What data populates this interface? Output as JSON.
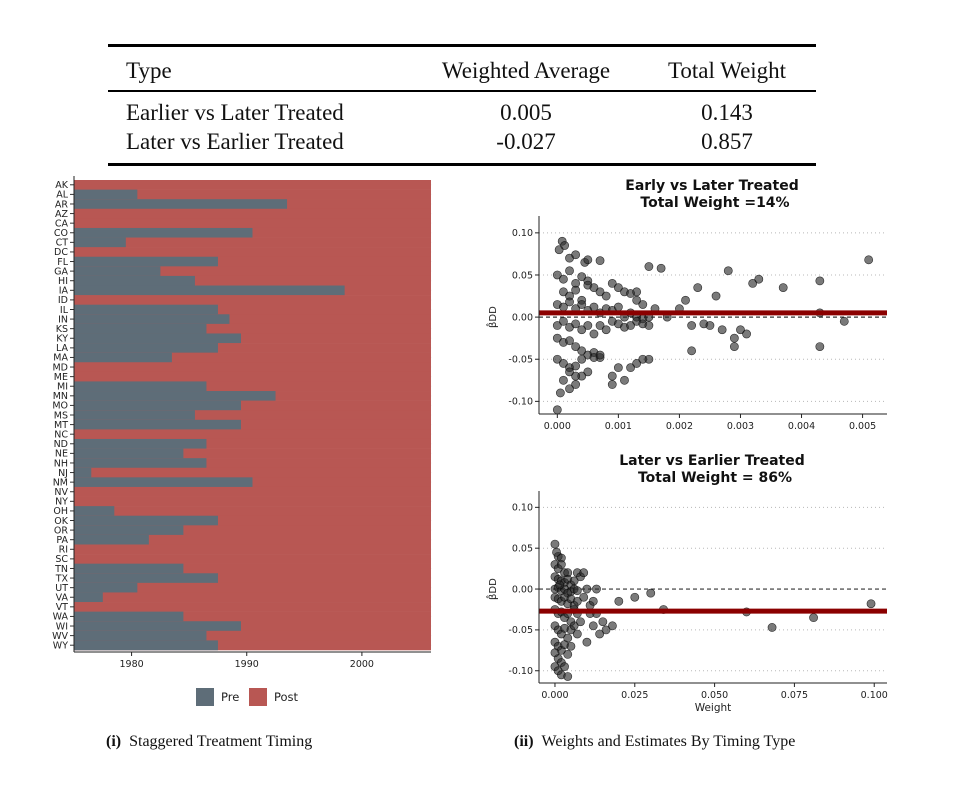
{
  "table": {
    "headers": [
      "Type",
      "Weighted Average",
      "Total Weight"
    ],
    "rows": [
      [
        "Earlier vs Later Treated",
        "0.005",
        "0.143"
      ],
      [
        "Later vs Earlier Treated",
        "-0.027",
        "0.857"
      ]
    ]
  },
  "captions": {
    "left_num": "(i)",
    "left_text": "Staggered Treatment Timing",
    "right_num": "(ii)",
    "right_text": "Weights and Estimates By Timing Type"
  },
  "chart_data": [
    {
      "type": "bar",
      "orientation": "horizontal-stacked",
      "xlim": [
        1975,
        2006
      ],
      "x_ticks": [
        1980,
        1990,
        2000
      ],
      "legend": [
        {
          "name": "Pre",
          "color": "#5e6d78"
        },
        {
          "name": "Post",
          "color": "#b85753"
        }
      ],
      "legend_position": "bottom",
      "categories": [
        "AK",
        "AL",
        "AR",
        "AZ",
        "CA",
        "CO",
        "CT",
        "DC",
        "FL",
        "GA",
        "HI",
        "IA",
        "ID",
        "IL",
        "IN",
        "KS",
        "KY",
        "LA",
        "MA",
        "MD",
        "ME",
        "MI",
        "MN",
        "MO",
        "MS",
        "MT",
        "NC",
        "ND",
        "NE",
        "NH",
        "NJ",
        "NM",
        "NV",
        "NY",
        "OH",
        "OK",
        "OR",
        "PA",
        "RI",
        "SC",
        "TN",
        "TX",
        "UT",
        "VA",
        "VT",
        "WA",
        "WI",
        "WV",
        "WY"
      ],
      "treatment_year": [
        1975,
        1980.5,
        1993.5,
        1975,
        1975,
        1990.5,
        1979.5,
        1975,
        1987.5,
        1982.5,
        1985.5,
        1998.5,
        1975,
        1987.5,
        1988.5,
        1986.5,
        1989.5,
        1987.5,
        1983.5,
        1975,
        1975,
        1986.5,
        1992.5,
        1989.5,
        1985.5,
        1989.5,
        1975,
        1986.5,
        1984.5,
        1986.5,
        1976.5,
        1990.5,
        1975,
        1975,
        1978.5,
        1987.5,
        1984.5,
        1981.5,
        1975,
        1975,
        1984.5,
        1987.5,
        1980.5,
        1977.5,
        1975,
        1984.5,
        1989.5,
        1986.5,
        1987.5
      ]
    },
    {
      "type": "scatter",
      "title": "Early vs Later Treated",
      "subtitle": "Total Weight =14%",
      "ylabel": "β̂DD",
      "xlim": [
        -0.0003,
        0.0054
      ],
      "ylim": [
        -0.115,
        0.12
      ],
      "x_ticks": [
        0.0,
        0.001,
        0.002,
        0.003,
        0.004,
        0.005
      ],
      "x_tick_labels": [
        "0.000",
        "0.001",
        "0.002",
        "0.003",
        "0.004",
        "0.005"
      ],
      "y_ticks": [
        -0.1,
        -0.05,
        0.0,
        0.05,
        0.1
      ],
      "y_tick_labels": [
        "-0.10",
        "-0.05",
        "0.00",
        "0.05",
        "0.10"
      ],
      "weighted_average": 0.005,
      "zero_line": 0,
      "points": [
        [
          3e-05,
          0.08
        ],
        [
          8e-05,
          0.09
        ],
        [
          0.00012,
          0.085
        ],
        [
          0.0002,
          0.07
        ],
        [
          0.0003,
          0.074
        ],
        [
          0.00045,
          0.065
        ],
        [
          0.0005,
          0.068
        ],
        [
          0.0007,
          0.067
        ],
        [
          0.0,
          0.05
        ],
        [
          0.0001,
          0.045
        ],
        [
          0.0002,
          0.055
        ],
        [
          0.0003,
          0.04
        ],
        [
          0.0004,
          0.048
        ],
        [
          0.0005,
          0.043
        ],
        [
          0.0001,
          0.03
        ],
        [
          0.0002,
          0.025
        ],
        [
          0.0003,
          0.032
        ],
        [
          0.0004,
          0.02
        ],
        [
          0.0005,
          0.038
        ],
        [
          0.0006,
          0.035
        ],
        [
          0.0007,
          0.03
        ],
        [
          0.0008,
          0.025
        ],
        [
          0.0009,
          0.04
        ],
        [
          0.001,
          0.035
        ],
        [
          0.0011,
          0.03
        ],
        [
          0.0012,
          0.028
        ],
        [
          0.0013,
          0.02
        ],
        [
          0.0014,
          0.015
        ],
        [
          0.0015,
          0.06
        ],
        [
          0.0017,
          0.058
        ],
        [
          0.0013,
          0.03
        ],
        [
          0.0016,
          0.01
        ],
        [
          0.0,
          0.015
        ],
        [
          0.0001,
          0.012
        ],
        [
          0.0002,
          0.018
        ],
        [
          0.0003,
          0.01
        ],
        [
          0.0004,
          0.015
        ],
        [
          0.0005,
          0.008
        ],
        [
          0.0006,
          0.012
        ],
        [
          0.0007,
          0.005
        ],
        [
          0.0008,
          0.01
        ],
        [
          0.0009,
          0.008
        ],
        [
          0.001,
          0.012
        ],
        [
          0.0011,
          0.0
        ],
        [
          0.0012,
          0.005
        ],
        [
          0.0013,
          0.0
        ],
        [
          0.0014,
          -0.002
        ],
        [
          0.0015,
          0.0
        ],
        [
          0.0,
          -0.01
        ],
        [
          0.0001,
          -0.005
        ],
        [
          0.0002,
          -0.012
        ],
        [
          0.0003,
          -0.008
        ],
        [
          0.0004,
          -0.015
        ],
        [
          0.0005,
          -0.01
        ],
        [
          0.0006,
          -0.02
        ],
        [
          0.0007,
          -0.01
        ],
        [
          0.0008,
          -0.015
        ],
        [
          0.0009,
          -0.005
        ],
        [
          0.001,
          -0.008
        ],
        [
          0.0011,
          -0.012
        ],
        [
          0.0012,
          -0.01
        ],
        [
          0.0013,
          -0.005
        ],
        [
          0.0014,
          -0.008
        ],
        [
          0.0015,
          -0.01
        ],
        [
          0.0,
          -0.025
        ],
        [
          0.0001,
          -0.03
        ],
        [
          0.0002,
          -0.028
        ],
        [
          0.0003,
          -0.035
        ],
        [
          0.0004,
          -0.04
        ],
        [
          0.0005,
          -0.045
        ],
        [
          0.0006,
          -0.042
        ],
        [
          0.0007,
          -0.048
        ],
        [
          0.0,
          -0.05
        ],
        [
          0.0001,
          -0.055
        ],
        [
          0.0002,
          -0.06
        ],
        [
          0.0003,
          -0.058
        ],
        [
          0.0004,
          -0.05
        ],
        [
          0.0005,
          -0.065
        ],
        [
          0.0006,
          -0.048
        ],
        [
          0.0007,
          -0.045
        ],
        [
          0.0001,
          -0.075
        ],
        [
          0.0002,
          -0.085
        ],
        [
          0.0003,
          -0.08
        ],
        [
          5e-05,
          -0.09
        ],
        [
          0.0,
          -0.11
        ],
        [
          0.0004,
          -0.07
        ],
        [
          0.0003,
          -0.07
        ],
        [
          0.0002,
          -0.065
        ],
        [
          0.0009,
          -0.07
        ],
        [
          0.001,
          -0.06
        ],
        [
          0.0009,
          -0.08
        ],
        [
          0.0011,
          -0.075
        ],
        [
          0.0012,
          -0.06
        ],
        [
          0.0013,
          -0.055
        ],
        [
          0.0014,
          -0.05
        ],
        [
          0.0015,
          -0.05
        ],
        [
          0.0018,
          0.0
        ],
        [
          0.002,
          0.01
        ],
        [
          0.0021,
          0.02
        ],
        [
          0.0022,
          -0.01
        ],
        [
          0.0022,
          -0.04
        ],
        [
          0.0023,
          0.035
        ],
        [
          0.0024,
          -0.008
        ],
        [
          0.0025,
          -0.01
        ],
        [
          0.0026,
          0.025
        ],
        [
          0.0027,
          -0.015
        ],
        [
          0.0028,
          0.055
        ],
        [
          0.0029,
          -0.025
        ],
        [
          0.0029,
          -0.035
        ],
        [
          0.003,
          -0.015
        ],
        [
          0.0031,
          -0.02
        ],
        [
          0.0032,
          0.04
        ],
        [
          0.0033,
          0.045
        ],
        [
          0.0037,
          0.035
        ],
        [
          0.0043,
          -0.035
        ],
        [
          0.0043,
          0.043
        ],
        [
          0.0043,
          0.005
        ],
        [
          0.0047,
          -0.005
        ],
        [
          0.0051,
          0.068
        ]
      ]
    },
    {
      "type": "scatter",
      "title": "Later vs Earlier Treated",
      "subtitle": "Total Weight = 86%",
      "xlabel": "Weight",
      "ylabel": "β̂DD",
      "xlim": [
        -0.005,
        0.104
      ],
      "ylim": [
        -0.115,
        0.12
      ],
      "x_ticks": [
        0.0,
        0.025,
        0.05,
        0.075,
        0.1
      ],
      "x_tick_labels": [
        "0.000",
        "0.025",
        "0.050",
        "0.075",
        "0.100"
      ],
      "y_ticks": [
        -0.1,
        -0.05,
        0.0,
        0.05,
        0.1
      ],
      "y_tick_labels": [
        "-0.10",
        "-0.05",
        "0.00",
        "0.05",
        "0.10"
      ],
      "weighted_average": -0.027,
      "zero_line": 0,
      "points": [
        [
          0.0,
          0.055
        ],
        [
          0.001,
          0.04
        ],
        [
          0.002,
          0.038
        ],
        [
          0.0,
          0.03
        ],
        [
          0.001,
          0.025
        ],
        [
          0.002,
          0.03
        ],
        [
          0.003,
          0.02
        ],
        [
          0.004,
          0.02
        ],
        [
          0.0,
          0.015
        ],
        [
          0.001,
          0.012
        ],
        [
          0.002,
          0.01
        ],
        [
          0.003,
          0.008
        ],
        [
          0.004,
          0.012
        ],
        [
          0.005,
          0.005
        ],
        [
          0.006,
          0.01
        ],
        [
          0.007,
          0.02
        ],
        [
          0.0,
          0.0
        ],
        [
          0.001,
          0.002
        ],
        [
          0.002,
          -0.002
        ],
        [
          0.003,
          0.0
        ],
        [
          0.004,
          -0.005
        ],
        [
          0.005,
          -0.003
        ],
        [
          0.006,
          0.0
        ],
        [
          0.007,
          -0.002
        ],
        [
          0.0,
          -0.01
        ],
        [
          0.001,
          -0.012
        ],
        [
          0.002,
          -0.015
        ],
        [
          0.003,
          -0.01
        ],
        [
          0.004,
          -0.018
        ],
        [
          0.005,
          -0.012
        ],
        [
          0.006,
          -0.02
        ],
        [
          0.007,
          -0.015
        ],
        [
          0.0,
          -0.025
        ],
        [
          0.001,
          -0.03
        ],
        [
          0.002,
          -0.028
        ],
        [
          0.003,
          -0.035
        ],
        [
          0.004,
          -0.03
        ],
        [
          0.005,
          -0.04
        ],
        [
          0.006,
          -0.025
        ],
        [
          0.007,
          -0.03
        ],
        [
          0.0,
          -0.045
        ],
        [
          0.001,
          -0.05
        ],
        [
          0.002,
          -0.055
        ],
        [
          0.003,
          -0.048
        ],
        [
          0.004,
          -0.06
        ],
        [
          0.005,
          -0.05
        ],
        [
          0.006,
          -0.045
        ],
        [
          0.007,
          -0.055
        ],
        [
          0.0,
          -0.065
        ],
        [
          0.001,
          -0.07
        ],
        [
          0.002,
          -0.075
        ],
        [
          0.003,
          -0.068
        ],
        [
          0.004,
          -0.08
        ],
        [
          0.005,
          -0.07
        ],
        [
          0.001,
          -0.085
        ],
        [
          0.002,
          -0.09
        ],
        [
          0.0,
          -0.095
        ],
        [
          0.001,
          -0.1
        ],
        [
          0.002,
          -0.105
        ],
        [
          0.004,
          -0.107
        ],
        [
          0.003,
          -0.095
        ],
        [
          0.0,
          -0.078
        ],
        [
          0.0005,
          0.045
        ],
        [
          0.0015,
          0.005
        ],
        [
          0.009,
          -0.01
        ],
        [
          0.01,
          0.0
        ],
        [
          0.011,
          -0.02
        ],
        [
          0.012,
          -0.045
        ],
        [
          0.013,
          -0.03
        ],
        [
          0.014,
          -0.055
        ],
        [
          0.015,
          -0.04
        ],
        [
          0.016,
          -0.05
        ],
        [
          0.018,
          -0.045
        ],
        [
          0.02,
          -0.015
        ],
        [
          0.025,
          -0.01
        ],
        [
          0.03,
          -0.005
        ],
        [
          0.034,
          -0.025
        ],
        [
          0.06,
          -0.028
        ],
        [
          0.068,
          -0.047
        ],
        [
          0.081,
          -0.035
        ],
        [
          0.099,
          -0.018
        ],
        [
          0.008,
          0.015
        ],
        [
          0.009,
          0.02
        ],
        [
          0.01,
          -0.065
        ],
        [
          0.011,
          -0.03
        ],
        [
          0.012,
          -0.015
        ],
        [
          0.013,
          0.0
        ],
        [
          0.008,
          -0.04
        ]
      ]
    }
  ]
}
